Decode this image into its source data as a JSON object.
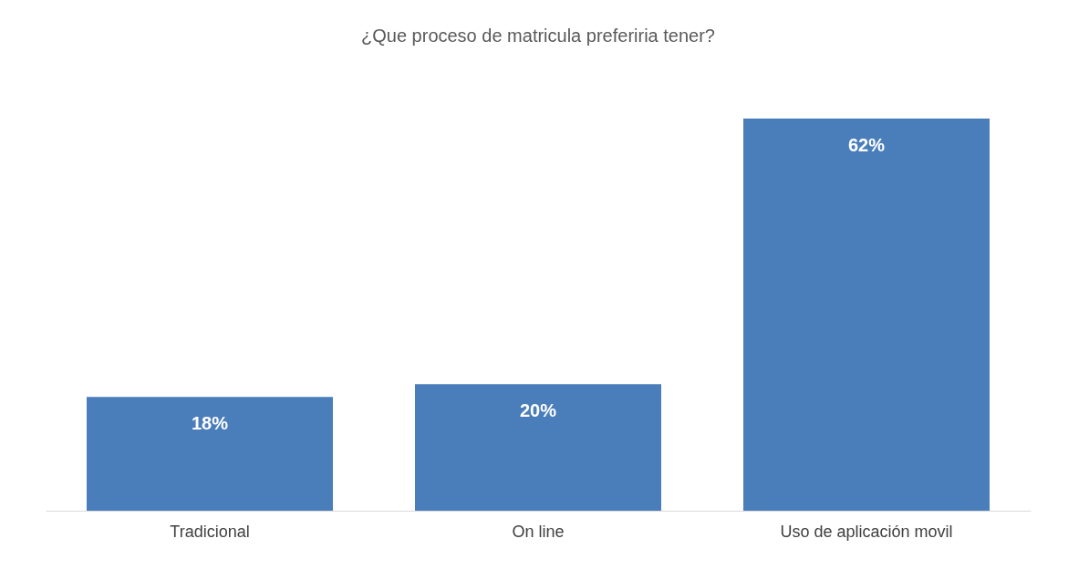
{
  "chart_data": {
    "type": "bar",
    "title": "¿Que proceso de matricula preferiria tener?",
    "categories": [
      "Tradicional",
      "On line",
      "Uso de aplicación movil"
    ],
    "values": [
      18,
      20,
      62
    ],
    "value_labels": [
      "18%",
      "20%",
      "62%"
    ],
    "color": "#4a7ebb",
    "grid": false,
    "tick_labels": "x"
  }
}
